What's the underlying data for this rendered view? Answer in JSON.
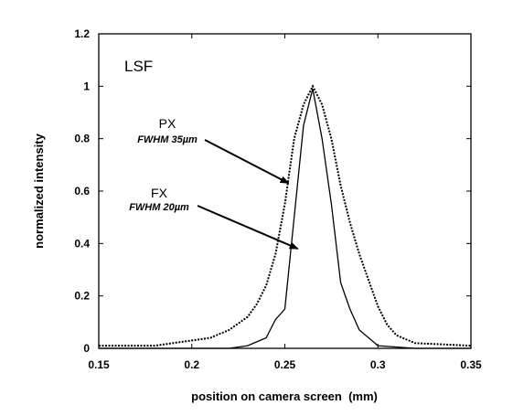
{
  "chart_data": {
    "type": "line",
    "title": "",
    "panel_label": "LSF",
    "xlabel": "position on camera screen  (mm)",
    "ylabel": "normalized intensity",
    "xlim": [
      0.15,
      0.35
    ],
    "ylim": [
      0,
      1.2
    ],
    "x_ticks": [
      "0.15",
      "0.2",
      "0.25",
      "0.3",
      "0.35"
    ],
    "y_ticks": [
      "0",
      "0.2",
      "0.4",
      "0.6",
      "0.8",
      "1",
      "1.2"
    ],
    "grid": false,
    "legend": "none",
    "series": [
      {
        "name": "PX",
        "annotation": "FWHM 35µm",
        "style": "dotted",
        "color": "#000000",
        "x": [
          0.15,
          0.18,
          0.2,
          0.21,
          0.22,
          0.23,
          0.235,
          0.24,
          0.245,
          0.25,
          0.255,
          0.26,
          0.265,
          0.27,
          0.275,
          0.28,
          0.285,
          0.29,
          0.295,
          0.3,
          0.305,
          0.31,
          0.32,
          0.35
        ],
        "y": [
          0.01,
          0.01,
          0.03,
          0.04,
          0.07,
          0.12,
          0.17,
          0.24,
          0.36,
          0.55,
          0.8,
          0.93,
          1.0,
          0.93,
          0.8,
          0.62,
          0.48,
          0.36,
          0.26,
          0.16,
          0.09,
          0.05,
          0.02,
          0.01
        ]
      },
      {
        "name": "FX",
        "annotation": "FWHM 20µm",
        "style": "solid",
        "color": "#000000",
        "x": [
          0.15,
          0.2,
          0.22,
          0.23,
          0.24,
          0.245,
          0.25,
          0.255,
          0.26,
          0.265,
          0.27,
          0.275,
          0.28,
          0.285,
          0.29,
          0.3,
          0.32,
          0.35
        ],
        "y": [
          0.0,
          0.0,
          0.0,
          0.01,
          0.04,
          0.11,
          0.15,
          0.5,
          0.85,
          0.99,
          0.8,
          0.55,
          0.25,
          0.15,
          0.07,
          0.01,
          0.0,
          0.0
        ]
      }
    ],
    "annotations": [
      {
        "series": "PX",
        "name": "PX",
        "sub": "FWHM 35µm",
        "arrow_to": [
          0.252,
          0.63
        ]
      },
      {
        "series": "FX",
        "name": "FX",
        "sub": "FWHM 20µm",
        "arrow_to": [
          0.257,
          0.38
        ]
      }
    ]
  }
}
